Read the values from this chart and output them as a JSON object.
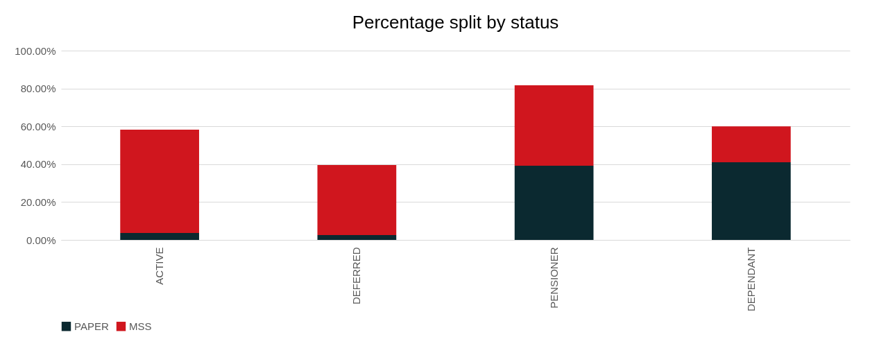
{
  "chart_data": {
    "type": "bar",
    "title": "Percentage split by status",
    "categories": [
      "ACTIVE",
      "DEFERRED",
      "PENSIONER",
      "DEPENDANT"
    ],
    "stacked": true,
    "series": [
      {
        "name": "PAPER",
        "color": "#0b2930",
        "values": [
          3.7,
          2.6,
          39.2,
          41
        ]
      },
      {
        "name": "MSS",
        "color": "#d0161e",
        "values": [
          54.5,
          37,
          42.5,
          19
        ]
      }
    ],
    "ylim": [
      0,
      100
    ],
    "yticks": [
      {
        "value": 0,
        "label": "0.00%"
      },
      {
        "value": 20,
        "label": "20.00%"
      },
      {
        "value": 40,
        "label": "40.00%"
      },
      {
        "value": 60,
        "label": "60.00%"
      },
      {
        "value": 80,
        "label": "80.00%"
      },
      {
        "value": 100,
        "label": "100.00%"
      }
    ],
    "grid": "y",
    "legend": "bottom"
  }
}
